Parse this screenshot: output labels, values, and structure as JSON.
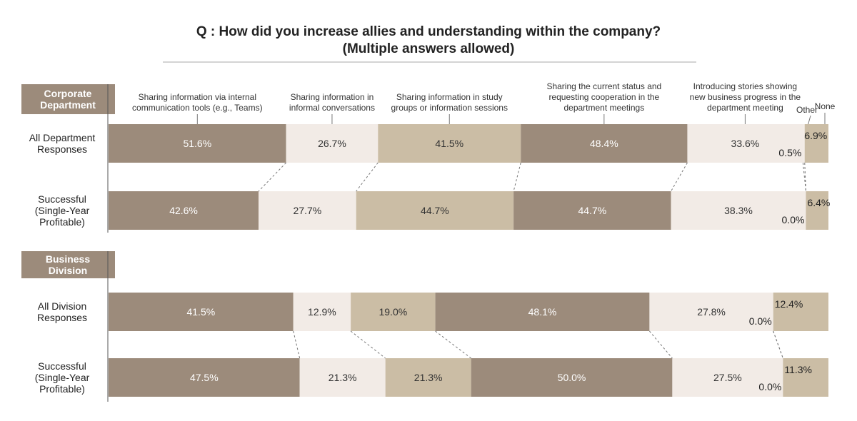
{
  "chart_data": {
    "type": "bar",
    "orientation": "horizontal",
    "stacked": true,
    "title": "Q : How did you increase allies and understanding within the company?",
    "subtitle": "(Multiple answers allowed)",
    "categories": [
      "Sharing information via internal communication tools (e.g., Teams)",
      "Sharing information in informal conversations",
      "Sharing information in study groups or information sessions",
      "Sharing the current status and requesting cooperation in the department meetings",
      "Introducing stories showing new business progress in the department meeting",
      "Other",
      "None"
    ],
    "category_label_lines": [
      [
        "Sharing information via internal",
        "communication tools (e.g., Teams)"
      ],
      [
        "Sharing information in",
        "informal conversations"
      ],
      [
        "Sharing information in study",
        "groups or information sessions"
      ],
      [
        "Sharing the current status and",
        "requesting cooperation in the",
        "department meetings"
      ],
      [
        "Introducing stories showing",
        "new business progress in the",
        "department meeting"
      ],
      [
        "Other"
      ],
      [
        "None"
      ]
    ],
    "colors": [
      "#9c8b7b",
      "#f2ebe6",
      "#cbbda5",
      "#9c8b7b",
      "#f2ebe6",
      "#f2ebe6",
      "#cbbda5"
    ],
    "sections": [
      {
        "name_lines": [
          "Corporate",
          "Department"
        ],
        "rows": [
          {
            "label_lines": [
              "All Department",
              "Responses"
            ],
            "values": [
              51.6,
              26.7,
              41.5,
              48.4,
              33.6,
              0.5,
              6.9
            ]
          },
          {
            "label_lines": [
              "Successful",
              "(Single-Year",
              "Profitable)"
            ],
            "values": [
              42.6,
              27.7,
              44.7,
              44.7,
              38.3,
              0.0,
              6.4
            ]
          }
        ]
      },
      {
        "name_lines": [
          "Business",
          "Division"
        ],
        "rows": [
          {
            "label_lines": [
              "All Division",
              "Responses"
            ],
            "values": [
              41.5,
              12.9,
              19.0,
              48.1,
              27.8,
              0.0,
              12.4
            ]
          },
          {
            "label_lines": [
              "Successful",
              "(Single-Year",
              "Profitable)"
            ],
            "values": [
              47.5,
              21.3,
              21.3,
              50.0,
              27.5,
              0.0,
              11.3
            ]
          }
        ]
      }
    ],
    "value_suffix": "%"
  }
}
